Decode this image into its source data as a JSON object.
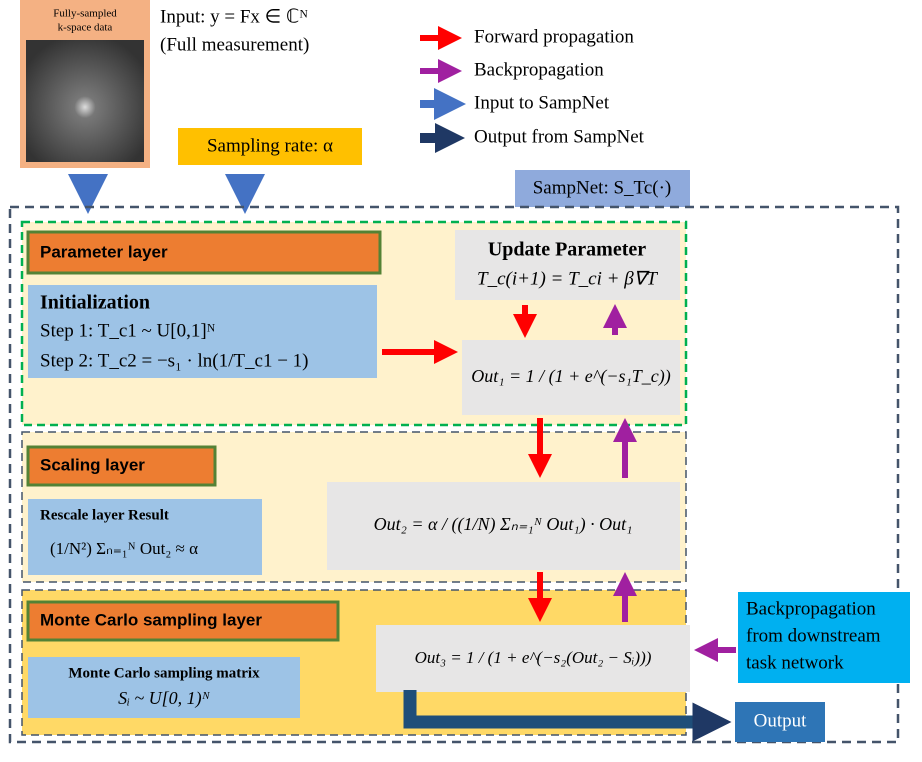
{
  "input": {
    "image_title": [
      "Fully-sampled",
      "k-space data"
    ],
    "formula": "Input: y = Fx ∈ ℂᴺ",
    "note": "(Full measurement)"
  },
  "legend": [
    "Forward propagation",
    "Backpropagation",
    "Input to SampNet",
    "Output from SampNet"
  ],
  "sampling_rate": "Sampling rate: α",
  "sampnet_label": "SampNet: S_Tc(·)",
  "parameter_layer": {
    "title": "Parameter layer",
    "init_title": "Initialization",
    "step1": "Step 1: T_c1 ~ U[0,1]ᴺ",
    "step2": "Step 2: T_c2 = −s₁ · ln(1/T_c1 − 1)",
    "update_title": "Update Parameter",
    "update_formula": "T_c(i+1) = T_ci + β∇T",
    "out1": "Out₁ = 1 / (1 + e^(−s₁T_c))"
  },
  "scaling_layer": {
    "title": "Scaling layer",
    "rescale_title": "Rescale layer Result",
    "rescale_formula": "(1/N²) Σₙ₌₁ᴺ Out₂ ≈ α",
    "out2": "Out₂ = α / ((1/N) Σₙ₌₁ᴺ Out₁) · Out₁"
  },
  "monte_carlo_layer": {
    "title": "Monte Carlo sampling layer",
    "matrix_title": "Monte Carlo sampling matrix",
    "matrix_formula": "Sᵢ ~ U[0, 1)ᴺ",
    "out3": "Out₃ = 1 / (1 + e^(−s₂(Out₂ − Sᵢ)))"
  },
  "downstream": [
    "Backpropagation",
    "from downstream",
    "task network"
  ],
  "output": "Output"
}
